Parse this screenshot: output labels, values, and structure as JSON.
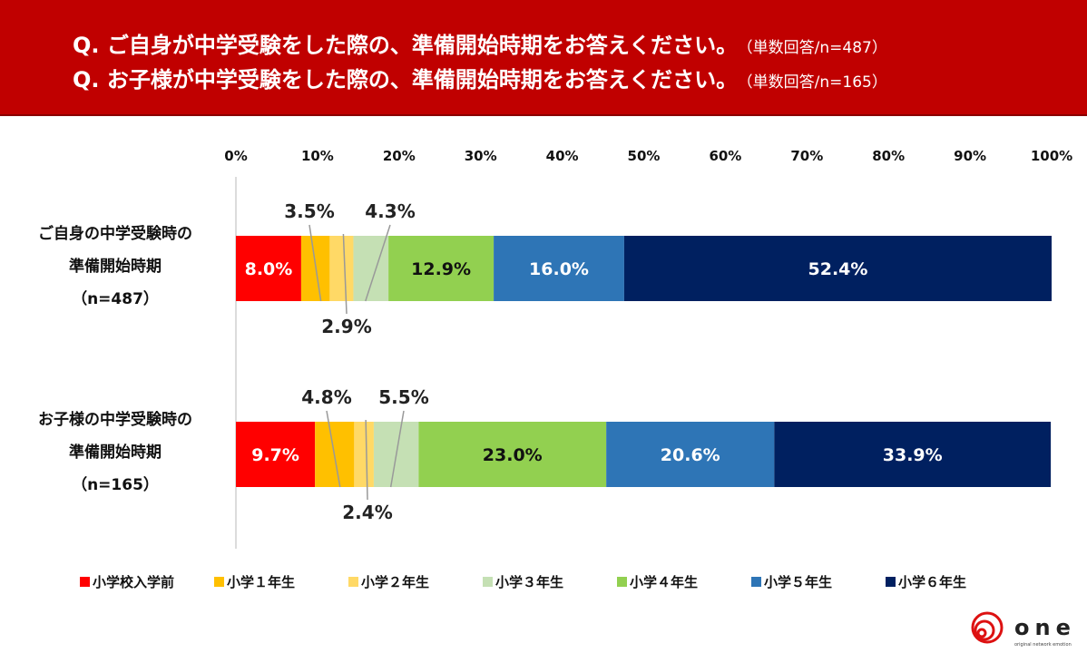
{
  "header": {
    "lines": [
      {
        "question": "Q. ご自身が中学受験をした際の、準備開始時期をお答えください。",
        "note": "（単数回答/n=487）"
      },
      {
        "question": "Q. お子様が中学受験をした際の、準備開始時期をお答えください。",
        "note": "（単数回答/n=165）"
      }
    ]
  },
  "chart_data": {
    "type": "bar",
    "orientation": "horizontal",
    "stacked": true,
    "percent": true,
    "xlim": [
      0,
      100
    ],
    "x_ticks": [
      "0%",
      "10%",
      "20%",
      "30%",
      "40%",
      "50%",
      "60%",
      "70%",
      "80%",
      "90%",
      "100%"
    ],
    "categories": [
      [
        "ご自身の中学受験時の",
        "準備開始時期",
        "（n=487）"
      ],
      [
        "お子様の中学受験時の",
        "準備開始時期",
        "（n=165）"
      ]
    ],
    "series": [
      {
        "name": "小学校入学前",
        "color": "#ff0000",
        "values": [
          8.0,
          9.7
        ],
        "labels": [
          "8.0%",
          "9.7%"
        ]
      },
      {
        "name": "小学１年生",
        "color": "#ffc000",
        "values": [
          3.5,
          4.8
        ],
        "labels": [
          "3.5%",
          "4.8%"
        ]
      },
      {
        "name": "小学２年生",
        "color": "#ffd966",
        "values": [
          2.9,
          2.4
        ],
        "labels": [
          "2.9%",
          "2.4%"
        ]
      },
      {
        "name": "小学３年生",
        "color": "#c5e0b4",
        "values": [
          4.3,
          5.5
        ],
        "labels": [
          "4.3%",
          "5.5%"
        ]
      },
      {
        "name": "小学４年生",
        "color": "#92d050",
        "values": [
          12.9,
          23.0
        ],
        "labels": [
          "12.9%",
          "23.0%"
        ]
      },
      {
        "name": "小学５年生",
        "color": "#2e75b6",
        "values": [
          16.0,
          20.6
        ],
        "labels": [
          "16.0%",
          "20.6%"
        ]
      },
      {
        "name": "小学６年生",
        "color": "#002060",
        "values": [
          52.4,
          33.9
        ],
        "labels": [
          "52.4%",
          "33.9%"
        ]
      }
    ],
    "legend_position": "bottom",
    "grid": false
  },
  "logo": {
    "text": "one",
    "tagline": "original network emotion"
  }
}
